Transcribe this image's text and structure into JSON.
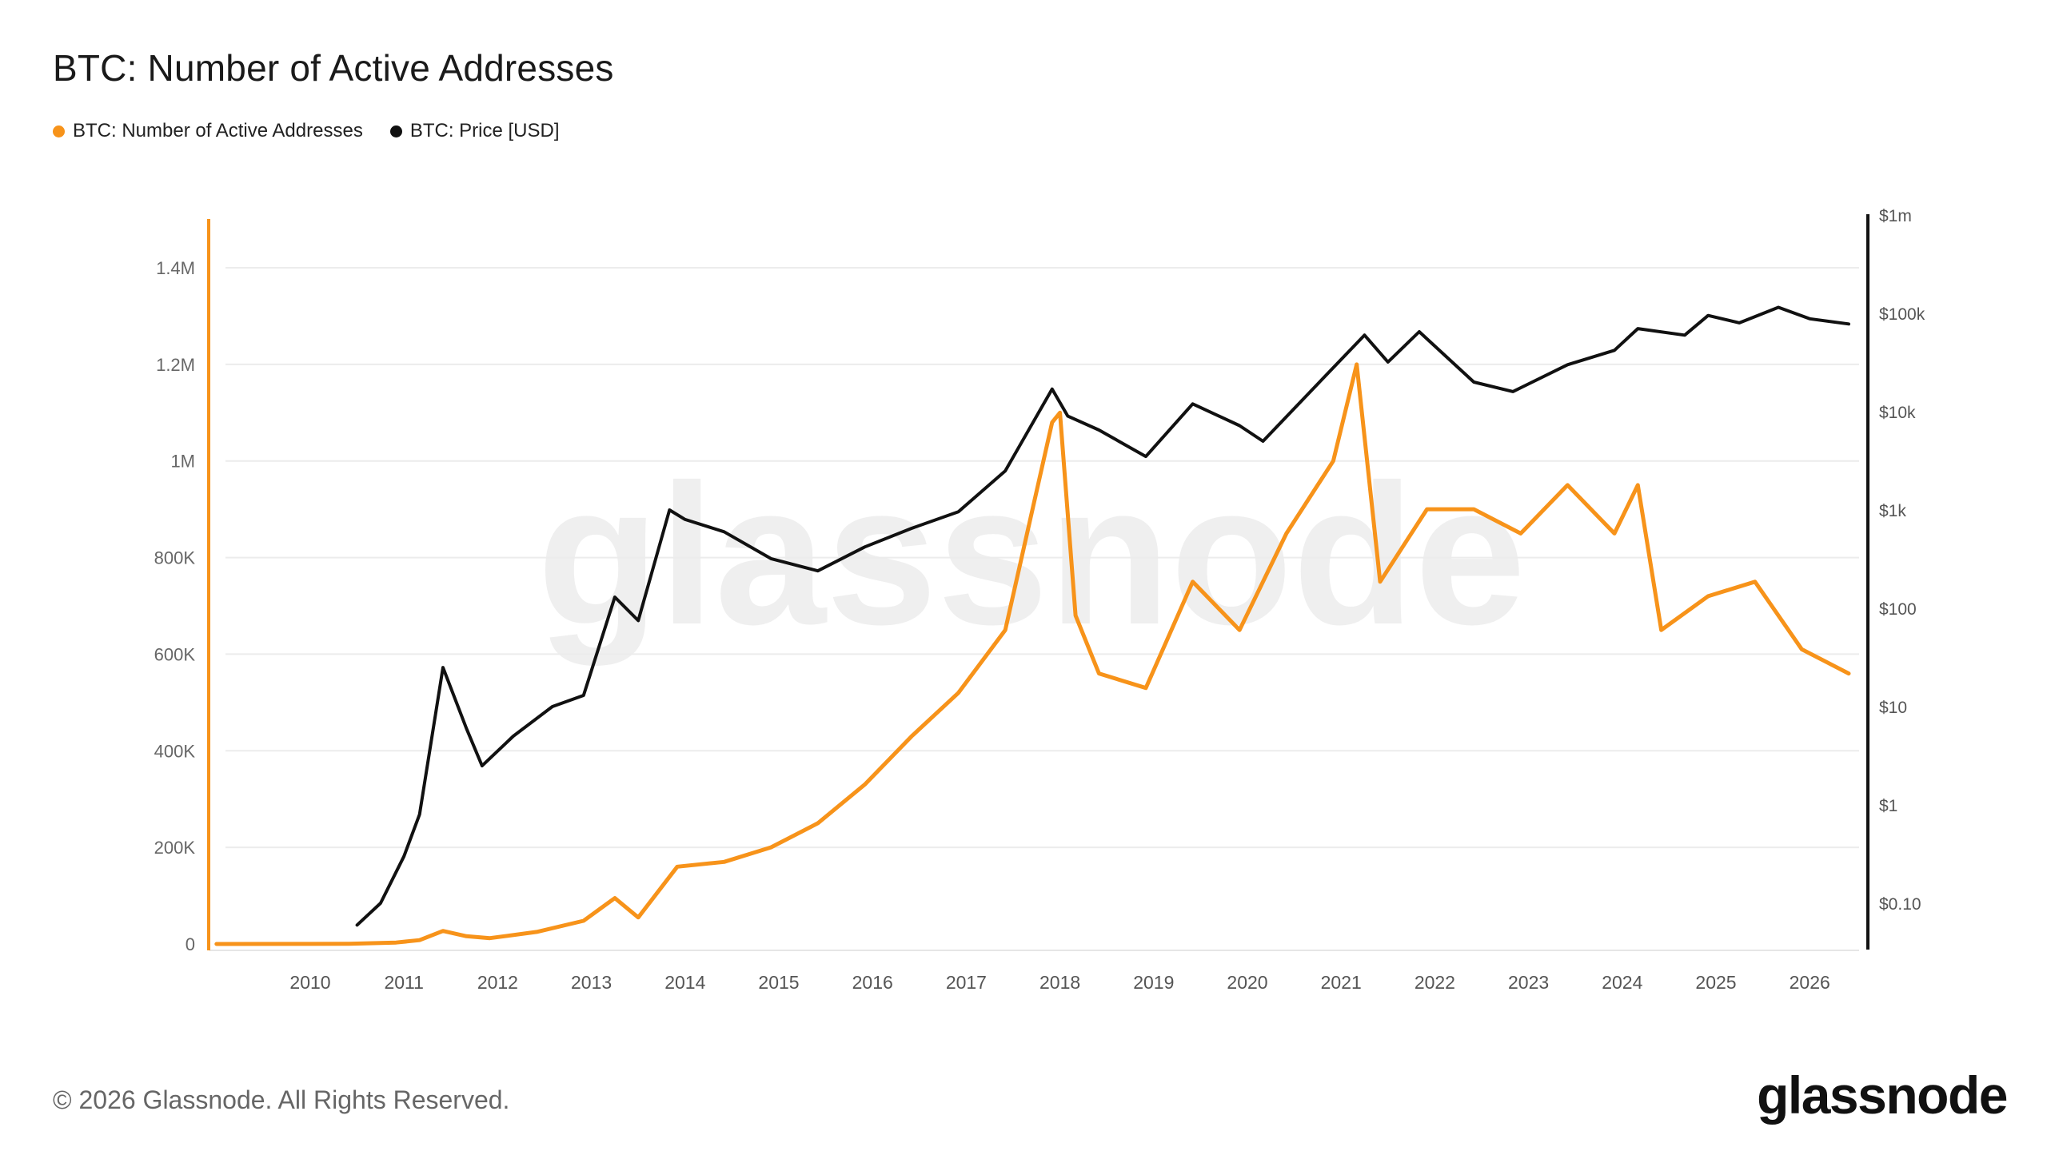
{
  "title": "BTC: Number of Active Addresses",
  "legend": [
    {
      "label": "BTC: Number of Active Addresses",
      "color": "#F7931A"
    },
    {
      "label": "BTC: Price [USD]",
      "color": "#111111"
    }
  ],
  "watermark": "glassnode",
  "footer": "© 2026 Glassnode. All Rights Reserved.",
  "logo": "glassnode",
  "chart_data": {
    "type": "line",
    "x_ticks": [
      "2010",
      "2011",
      "2012",
      "2013",
      "2014",
      "2015",
      "2016",
      "2017",
      "2018",
      "2019",
      "2020",
      "2021",
      "2022",
      "2023",
      "2024",
      "2025",
      "2026"
    ],
    "y_left": {
      "ticks": [
        "0",
        "200K",
        "400K",
        "600K",
        "800K",
        "1M",
        "1.2M",
        "1.4M"
      ],
      "range": [
        0,
        1500000
      ]
    },
    "y_right": {
      "scale": "log",
      "ticks": [
        "$0.10",
        "$1",
        "$10",
        "$100",
        "$1k",
        "$10k",
        "$100k",
        "$1m"
      ],
      "range": [
        0.05,
        1000000
      ]
    },
    "grid": true,
    "legend_position": "top-left",
    "series": [
      {
        "name": "BTC: Number of Active Addresses",
        "axis": "left",
        "color": "#F7931A",
        "points": [
          [
            "2009-01",
            0
          ],
          [
            "2010-01",
            100
          ],
          [
            "2010-06",
            500
          ],
          [
            "2010-12",
            3000
          ],
          [
            "2011-03",
            8000
          ],
          [
            "2011-06",
            27000
          ],
          [
            "2011-09",
            16000
          ],
          [
            "2011-12",
            12000
          ],
          [
            "2012-06",
            25000
          ],
          [
            "2012-12",
            48000
          ],
          [
            "2013-04",
            95000
          ],
          [
            "2013-07",
            55000
          ],
          [
            "2013-12",
            160000
          ],
          [
            "2014-06",
            170000
          ],
          [
            "2014-12",
            200000
          ],
          [
            "2015-06",
            250000
          ],
          [
            "2015-12",
            330000
          ],
          [
            "2016-06",
            430000
          ],
          [
            "2016-12",
            520000
          ],
          [
            "2017-06",
            650000
          ],
          [
            "2017-12",
            1080000
          ],
          [
            "2018-01",
            1100000
          ],
          [
            "2018-03",
            680000
          ],
          [
            "2018-06",
            560000
          ],
          [
            "2018-12",
            530000
          ],
          [
            "2019-06",
            750000
          ],
          [
            "2019-12",
            650000
          ],
          [
            "2020-06",
            850000
          ],
          [
            "2020-12",
            1000000
          ],
          [
            "2021-03",
            1200000
          ],
          [
            "2021-06",
            750000
          ],
          [
            "2021-12",
            900000
          ],
          [
            "2022-06",
            900000
          ],
          [
            "2022-12",
            850000
          ],
          [
            "2023-06",
            950000
          ],
          [
            "2023-12",
            850000
          ],
          [
            "2024-03",
            950000
          ],
          [
            "2024-06",
            650000
          ],
          [
            "2024-12",
            720000
          ],
          [
            "2025-06",
            750000
          ],
          [
            "2025-12",
            610000
          ],
          [
            "2026-06",
            560000
          ]
        ]
      },
      {
        "name": "BTC: Price [USD]",
        "axis": "right",
        "color": "#111111",
        "points": [
          [
            "2010-07",
            0.06
          ],
          [
            "2010-10",
            0.1
          ],
          [
            "2011-01",
            0.3
          ],
          [
            "2011-03",
            0.8
          ],
          [
            "2011-06",
            25
          ],
          [
            "2011-09",
            6
          ],
          [
            "2011-11",
            2.5
          ],
          [
            "2012-03",
            5
          ],
          [
            "2012-08",
            10
          ],
          [
            "2012-12",
            13
          ],
          [
            "2013-04",
            130
          ],
          [
            "2013-07",
            75
          ],
          [
            "2013-11",
            1000
          ],
          [
            "2014-01",
            800
          ],
          [
            "2014-06",
            600
          ],
          [
            "2014-12",
            320
          ],
          [
            "2015-06",
            240
          ],
          [
            "2015-12",
            420
          ],
          [
            "2016-06",
            650
          ],
          [
            "2016-12",
            960
          ],
          [
            "2017-06",
            2500
          ],
          [
            "2017-12",
            17000
          ],
          [
            "2018-02",
            9000
          ],
          [
            "2018-06",
            6500
          ],
          [
            "2018-12",
            3500
          ],
          [
            "2019-06",
            12000
          ],
          [
            "2019-12",
            7200
          ],
          [
            "2020-03",
            5000
          ],
          [
            "2020-12",
            28000
          ],
          [
            "2021-04",
            60000
          ],
          [
            "2021-07",
            32000
          ],
          [
            "2021-11",
            65000
          ],
          [
            "2022-06",
            20000
          ],
          [
            "2022-11",
            16000
          ],
          [
            "2023-06",
            30000
          ],
          [
            "2023-12",
            42000
          ],
          [
            "2024-03",
            70000
          ],
          [
            "2024-09",
            60000
          ],
          [
            "2024-12",
            95000
          ],
          [
            "2025-04",
            80000
          ],
          [
            "2025-09",
            115000
          ],
          [
            "2026-01",
            88000
          ],
          [
            "2026-06",
            78000
          ]
        ]
      }
    ]
  }
}
